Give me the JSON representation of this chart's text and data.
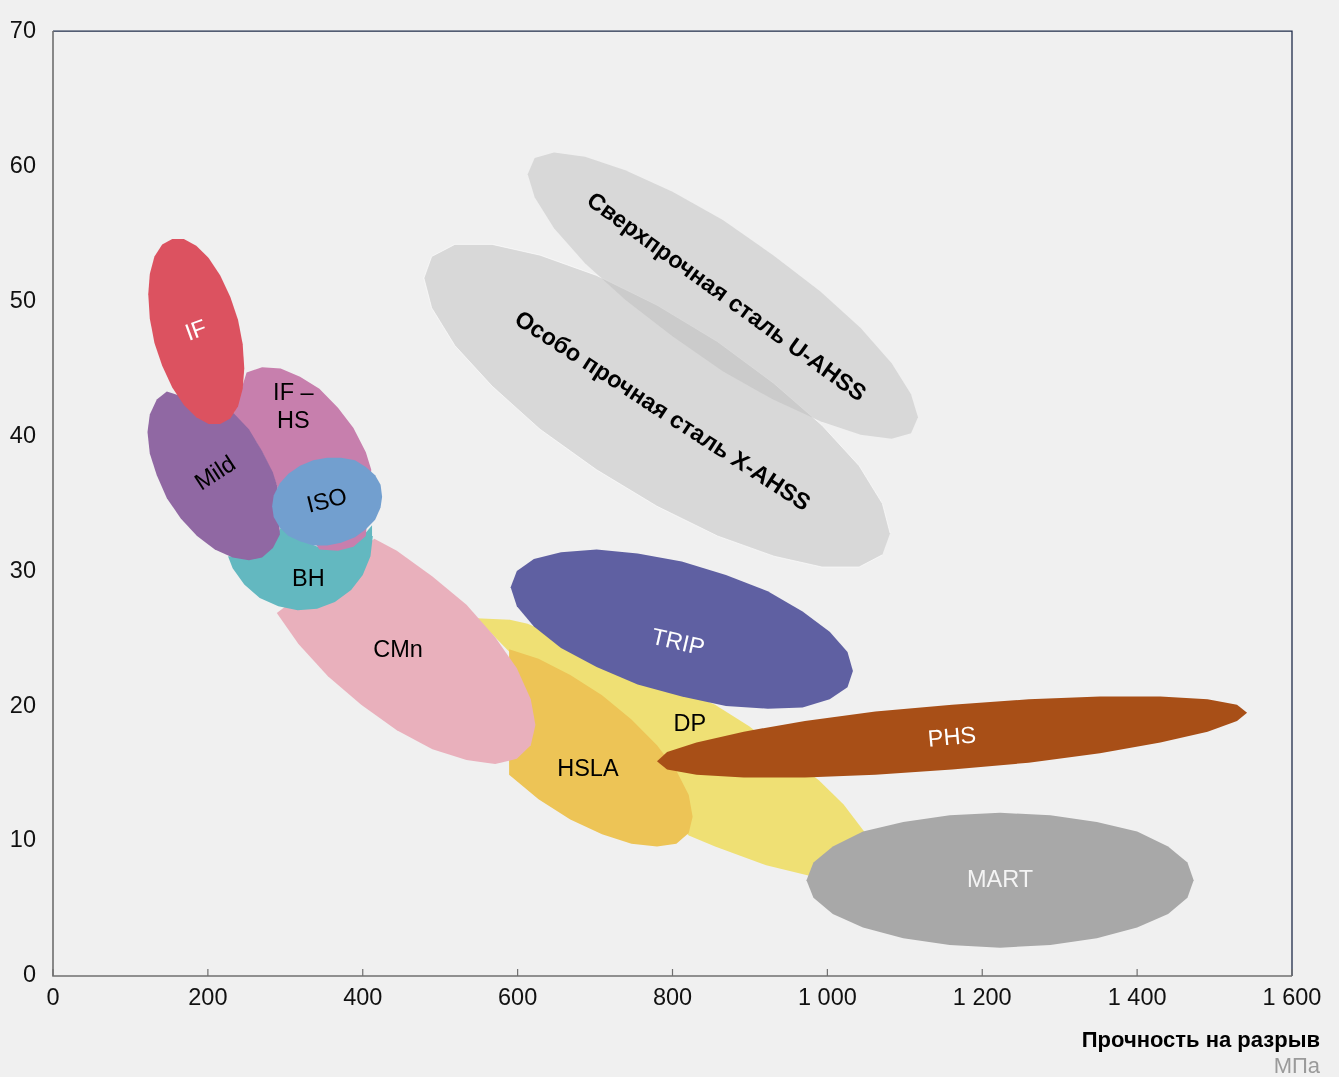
{
  "chart_data": {
    "type": "area",
    "xlabel": "Прочность на разрыв",
    "annotations": [
      "МПа"
    ],
    "xlim": [
      0,
      1600
    ],
    "xticks": [
      0,
      200,
      400,
      600,
      800,
      {
        "value": 1000,
        "label": "1 000"
      },
      {
        "value": 1200,
        "label": "1 200"
      },
      {
        "value": 1400,
        "label": "1 400"
      },
      {
        "value": 1600,
        "label": "1 600"
      }
    ],
    "ylim": [
      0,
      70
    ],
    "yticks": [
      0,
      10,
      20,
      30,
      40,
      50,
      60,
      70
    ],
    "marker": "none",
    "series": [
      {
        "name": "Особо прочная сталь X-AHSS",
        "color": "#d8d8d8",
        "x": [
          1081,
          1071,
          1041,
          993,
          931,
          858,
          780,
          702,
          629,
          567,
          519,
          489,
          479,
          489,
          519,
          567,
          629,
          702,
          780,
          858,
          931,
          993,
          1041,
          1071
        ],
        "values": [
          32.8,
          35.0,
          37.8,
          40.8,
          43.9,
          47.0,
          49.7,
          51.9,
          53.4,
          54.2,
          54.2,
          53.3,
          51.7,
          49.5,
          46.7,
          43.7,
          40.5,
          37.5,
          34.8,
          32.6,
          31.1,
          30.3,
          30.3,
          31.2
        ]
      },
      {
        "name": "Сверхпрочная сталь U-AHSS",
        "color": "#d8d8d8",
        "x": [
          1117,
          1108,
          1083,
          1043,
          991,
          930,
          865,
          800,
          739,
          687,
          647,
          622,
          613,
          622,
          647,
          687,
          739,
          800,
          865,
          930,
          991,
          1043,
          1083,
          1108
        ],
        "values": [
          41.4,
          43.1,
          45.4,
          48.0,
          50.7,
          53.4,
          56.0,
          58.1,
          59.7,
          60.7,
          61.0,
          60.6,
          59.4,
          57.7,
          55.4,
          52.8,
          50.1,
          47.4,
          44.8,
          42.7,
          41.1,
          40.1,
          39.8,
          40.2
        ]
      },
      {
        "name": "DP",
        "color": "#efe074",
        "x": [
          1049,
          1021,
          989,
          899,
          855,
          613,
          590,
          547,
          821,
          855,
          921,
          978
        ],
        "values": [
          10.6,
          12.7,
          14.5,
          18.5,
          20.1,
          26.1,
          26.4,
          26.5,
          10.4,
          9.6,
          8.2,
          7.4
        ]
      },
      {
        "name": "HSLA",
        "color": "#edc456",
        "x": [
          826,
          821,
          805,
          780,
          747,
          709,
          668,
          627,
          589,
          589,
          627,
          668,
          709,
          747,
          780,
          805,
          821
        ],
        "values": [
          11.8,
          13.4,
          15.2,
          17.1,
          19.0,
          20.8,
          22.3,
          23.5,
          24.2,
          14.9,
          13.1,
          11.6,
          10.5,
          9.8,
          9.6,
          9.8,
          10.6
        ]
      },
      {
        "name": "CMn",
        "color": "#e9b0bc",
        "x": [
          623,
          617,
          599,
          571,
          534,
          490,
          444,
          415,
          289,
          317,
          355,
          398,
          444,
          490,
          534,
          571,
          599,
          617
        ],
        "values": [
          18.6,
          20.5,
          22.8,
          25.1,
          27.5,
          29.6,
          31.5,
          32.4,
          26.9,
          24.6,
          22.2,
          20.1,
          18.2,
          16.8,
          16.0,
          15.7,
          16.1,
          17.1
        ]
      },
      {
        "name": "TRIP",
        "color": "#5f60a2",
        "x": [
          1033,
          1026,
          1003,
          968,
          923,
          869,
          812,
          755,
          702,
          656,
          621,
          599,
          591,
          599,
          621,
          656,
          702,
          755,
          812,
          869,
          923,
          968,
          1003,
          1026
        ],
        "values": [
          22.6,
          24.0,
          25.5,
          27.0,
          28.5,
          29.7,
          30.7,
          31.3,
          31.6,
          31.4,
          30.9,
          30.0,
          28.8,
          27.4,
          25.9,
          24.3,
          22.9,
          21.6,
          20.7,
          20.0,
          19.8,
          19.9,
          20.5,
          21.4
        ]
      },
      {
        "name": "PHS",
        "color": "#a84f17",
        "x": [
          1542,
          1529,
          1491,
          1430,
          1352,
          1260,
          1161,
          1062,
          971,
          892,
          831,
          793,
          780,
          793,
          831,
          892,
          971,
          1062,
          1161,
          1260,
          1352,
          1430,
          1491,
          1529
        ],
        "values": [
          19.5,
          20.1,
          20.5,
          20.7,
          20.7,
          20.5,
          20.1,
          19.6,
          18.9,
          18.1,
          17.3,
          16.6,
          15.9,
          15.3,
          14.9,
          14.7,
          14.7,
          14.9,
          15.3,
          15.8,
          16.5,
          17.3,
          18.1,
          18.9
        ]
      },
      {
        "name": "MART",
        "color": "#a8a8a8",
        "x": [
          1473,
          1465,
          1440,
          1400,
          1348,
          1288,
          1223,
          1158,
          1098,
          1046,
          1007,
          982,
          973,
          982,
          1007,
          1046,
          1098,
          1158,
          1223,
          1288,
          1348,
          1400,
          1440,
          1465
        ],
        "values": [
          7.1,
          8.4,
          9.6,
          10.7,
          11.4,
          11.9,
          12.1,
          11.9,
          11.4,
          10.7,
          9.6,
          8.4,
          7.1,
          5.8,
          4.6,
          3.6,
          2.8,
          2.3,
          2.1,
          2.3,
          2.8,
          3.6,
          4.6,
          5.8
        ]
      },
      {
        "name": "BH",
        "color": "#63b8c0",
        "x": [
          413,
          412,
          396,
          371,
          342,
          319,
          304,
          294,
          280,
          261,
          226,
          232,
          247,
          267,
          291,
          316,
          341,
          364,
          385,
          400,
          410
        ],
        "values": [
          32.6,
          33.4,
          32.3,
          31.7,
          31.8,
          32.3,
          32.8,
          33.2,
          31.6,
          31.0,
          31.1,
          30.2,
          29.0,
          28.0,
          27.4,
          27.1,
          27.2,
          27.7,
          28.6,
          29.7,
          31.1
        ]
      },
      {
        "name": "IF – HS",
        "color": "#c77fad",
        "x": [
          411,
          404,
          388,
          368,
          344,
          319,
          294,
          270,
          250,
          233,
          246,
          262,
          273,
          282,
          290,
          344,
          368,
          388,
          404
        ],
        "values": [
          37.5,
          38.8,
          40.6,
          42.1,
          43.5,
          44.4,
          45.0,
          45.1,
          44.7,
          41.6,
          40.8,
          39.6,
          38.5,
          37.4,
          36.2,
          31.6,
          31.5,
          31.8,
          32.6
        ]
      },
      {
        "name": "Mild",
        "color": "#9068a3",
        "x": [
          290,
          284,
          270,
          253,
          233,
          147,
          134,
          125,
          122,
          125,
          134,
          147,
          165,
          186,
          209,
          232,
          253,
          270,
          284,
          293
        ],
        "values": [
          36.2,
          37.3,
          38.9,
          40.5,
          41.7,
          43.3,
          42.7,
          41.6,
          40.3,
          38.7,
          37.1,
          35.4,
          33.9,
          32.6,
          31.6,
          31.0,
          30.8,
          31.0,
          31.7,
          32.7
        ]
      },
      {
        "name": "IF",
        "color": "#dc5260",
        "x": [
          247,
          245,
          239,
          229,
          216,
          201,
          185,
          169,
          154,
          141,
          131,
          125,
          123,
          125,
          131,
          141,
          154,
          169,
          185,
          201,
          216,
          229,
          239,
          245
        ],
        "values": [
          45.0,
          46.8,
          48.6,
          50.3,
          51.9,
          53.2,
          54.1,
          54.6,
          54.6,
          54.2,
          53.3,
          52.0,
          50.5,
          48.7,
          46.9,
          45.2,
          43.6,
          42.3,
          41.4,
          40.9,
          40.9,
          41.3,
          42.2,
          43.5
        ]
      },
      {
        "name": "ISO",
        "color": "#729fcf",
        "x": [
          425,
          423,
          416,
          404,
          390,
          372,
          354,
          336,
          319,
          304,
          293,
          285,
          283,
          285,
          293,
          304,
          319,
          336,
          354,
          372,
          390,
          404,
          416,
          423
        ],
        "values": [
          35.5,
          36.4,
          37.1,
          37.7,
          38.2,
          38.4,
          38.4,
          38.2,
          37.8,
          37.2,
          36.5,
          35.6,
          34.8,
          34.0,
          33.2,
          32.6,
          32.2,
          31.9,
          31.9,
          32.1,
          32.5,
          33.1,
          33.8,
          34.7
        ]
      }
    ]
  }
}
